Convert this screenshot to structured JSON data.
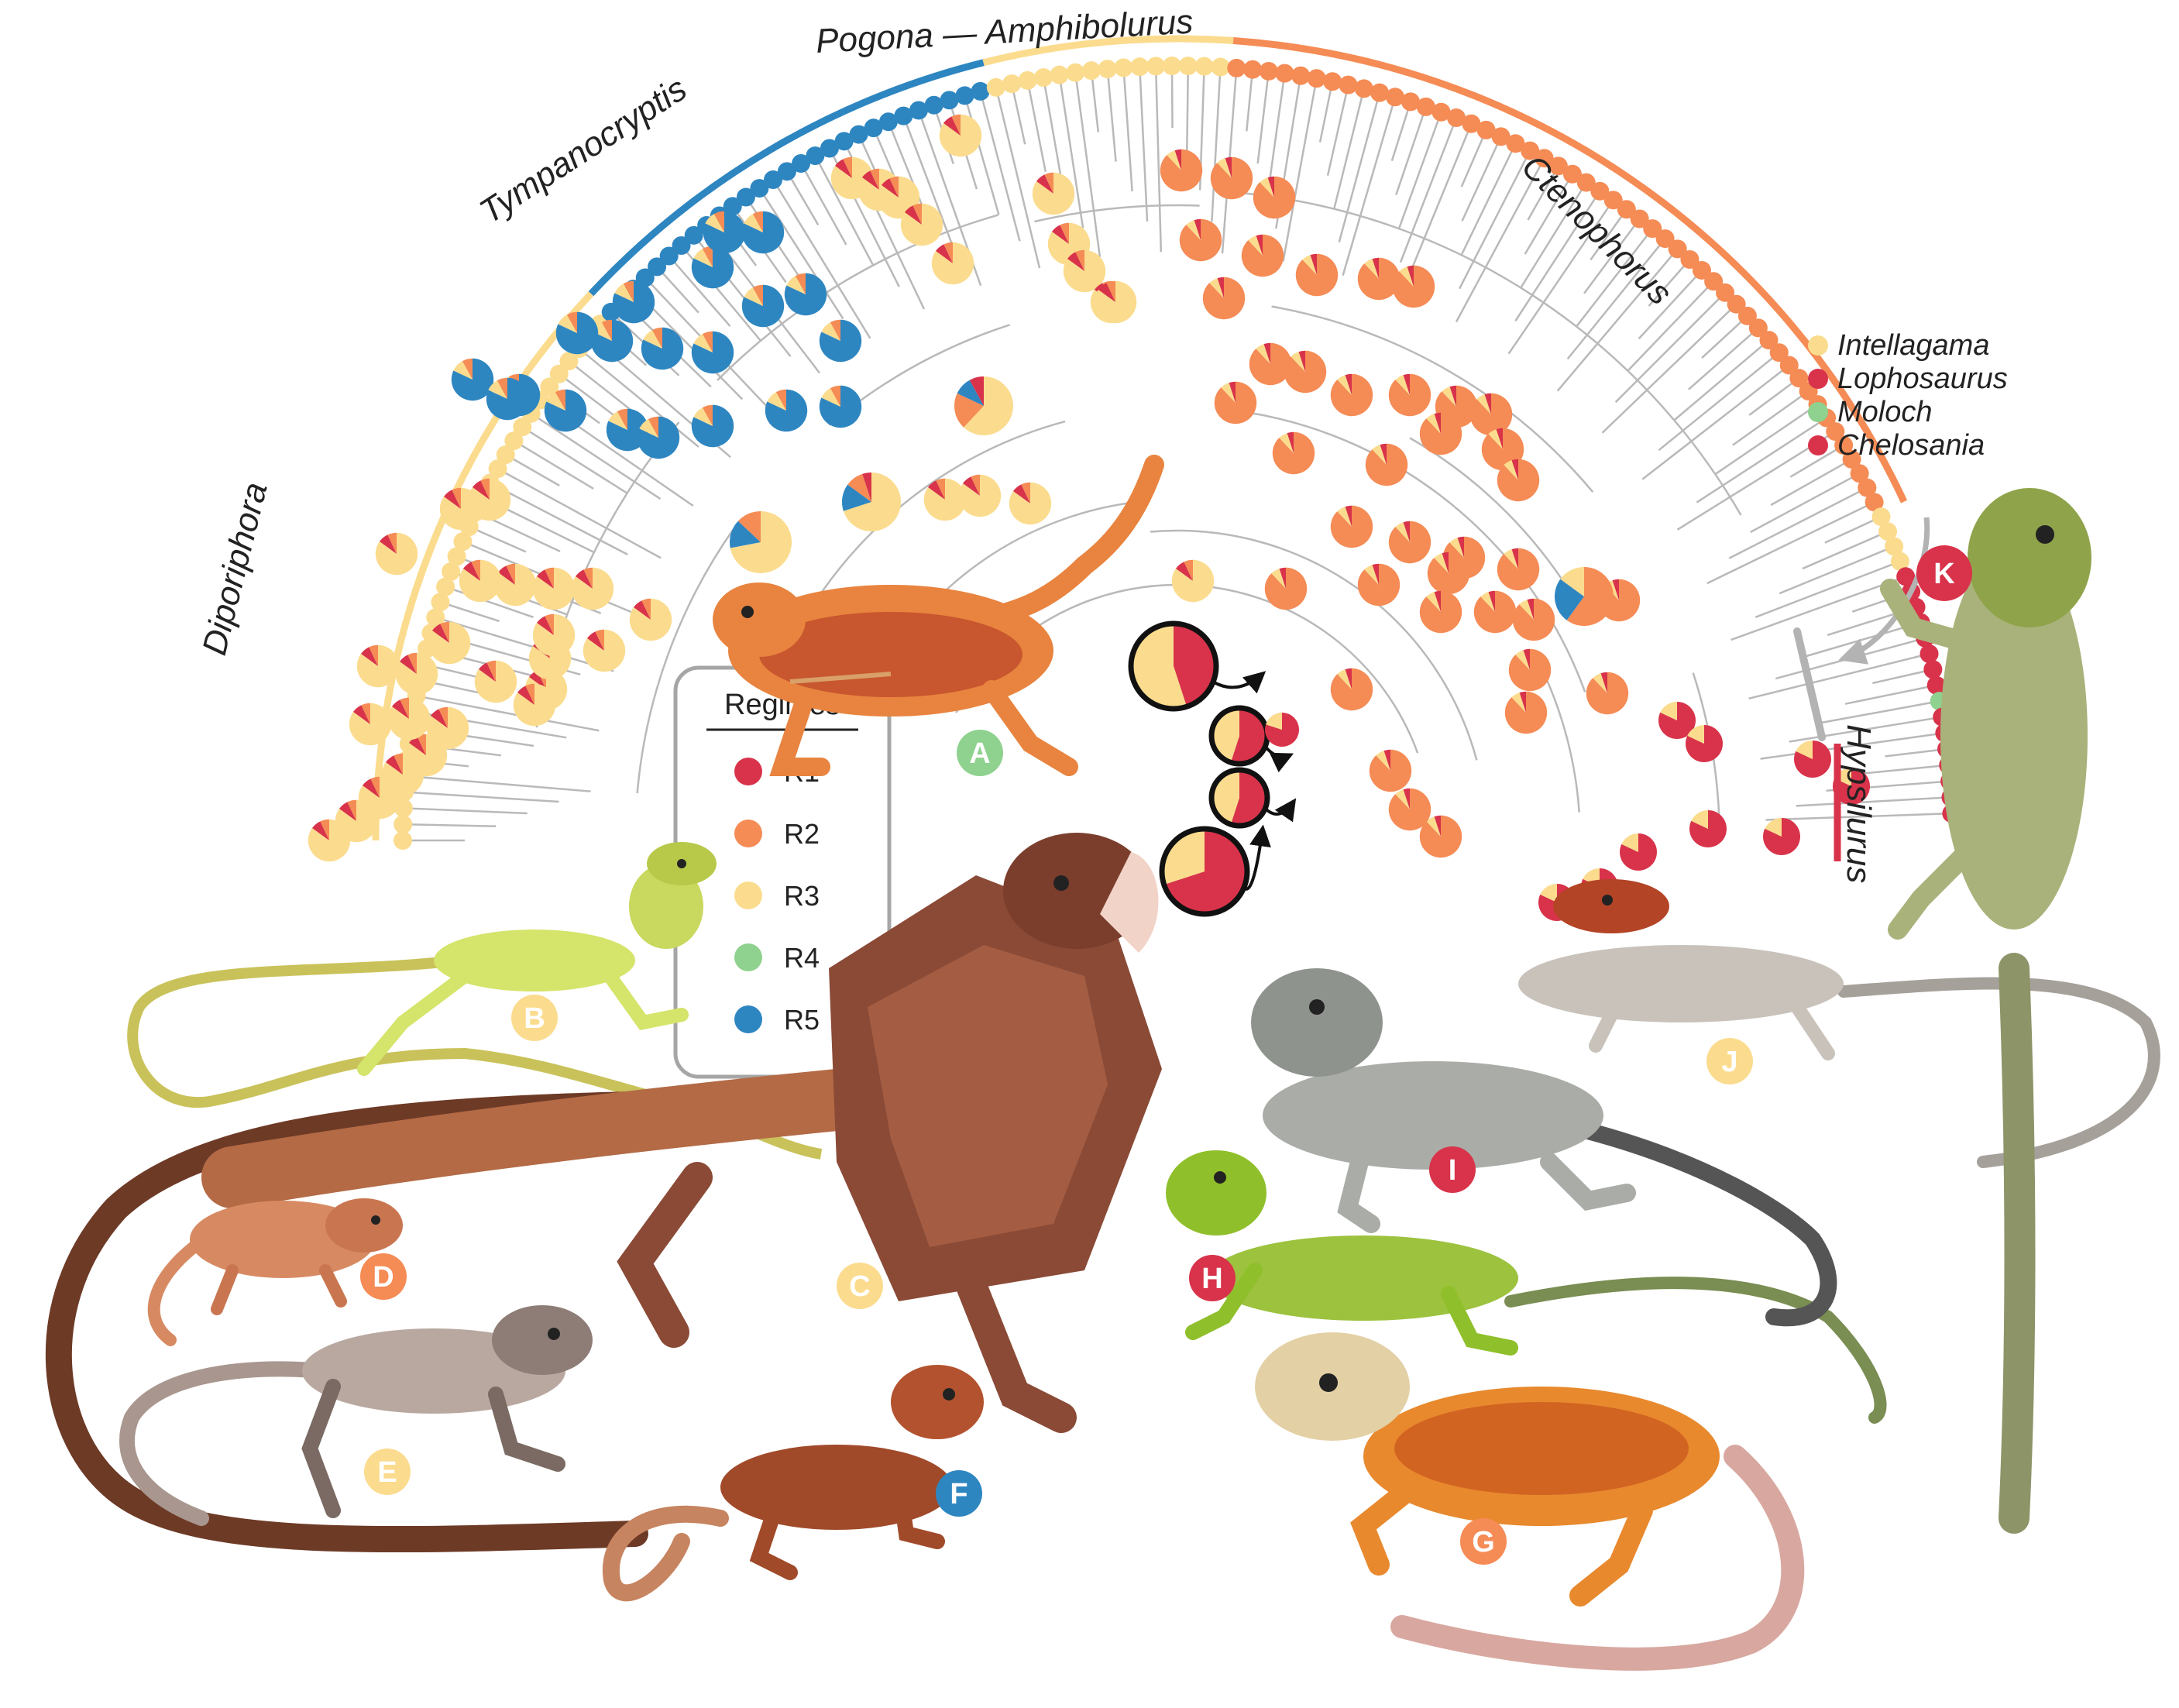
{
  "colors": {
    "R1": "#d8334a",
    "R2": "#f58b55",
    "R3": "#fbdc8e",
    "R4": "#8fd18e",
    "R5": "#2e86c1",
    "branch": "#b9b9b9",
    "legend_border": "#a6a6a6",
    "grey_bar": "#b3b3b3"
  },
  "clades": {
    "diporiphora": "Diporiphora",
    "tympanocryptis": "Tympanocryptis",
    "pogona": "Pogona — Amphibolurus",
    "ctenophorus": "Ctenophorus",
    "hypsilurus": "Hypsilurus"
  },
  "legend": {
    "title": "Regimes",
    "items": [
      {
        "label": "R1",
        "color": "#d8334a"
      },
      {
        "label": "R2",
        "color": "#f58b55"
      },
      {
        "label": "R3",
        "color": "#fbdc8e"
      },
      {
        "label": "R4",
        "color": "#8fd18e"
      },
      {
        "label": "R5",
        "color": "#2e86c1"
      }
    ]
  },
  "genera": [
    {
      "name": "Intellagama",
      "color": "#fbdc8e"
    },
    {
      "name": "Lophosaurus",
      "color": "#d8334a"
    },
    {
      "name": "Moloch",
      "color": "#8fd18e"
    },
    {
      "name": "Chelosania",
      "color": "#d8334a"
    }
  ],
  "lizards": [
    {
      "letter": "A",
      "regime": "R4",
      "color": "#8fd18e"
    },
    {
      "letter": "B",
      "regime": "R3",
      "color": "#fbdc8e"
    },
    {
      "letter": "C",
      "regime": "R3",
      "color": "#fbdc8e"
    },
    {
      "letter": "D",
      "regime": "R2",
      "color": "#f58b55"
    },
    {
      "letter": "E",
      "regime": "R3",
      "color": "#fbdc8e"
    },
    {
      "letter": "F",
      "regime": "R5",
      "color": "#2e86c1"
    },
    {
      "letter": "G",
      "regime": "R2",
      "color": "#f58b55"
    },
    {
      "letter": "H",
      "regime": "R1",
      "color": "#d8334a"
    },
    {
      "letter": "I",
      "regime": "R1",
      "color": "#d8334a"
    },
    {
      "letter": "J",
      "regime": "R3",
      "color": "#fbdc8e"
    },
    {
      "letter": "K",
      "regime": "R1",
      "color": "#d8334a"
    }
  ]
}
